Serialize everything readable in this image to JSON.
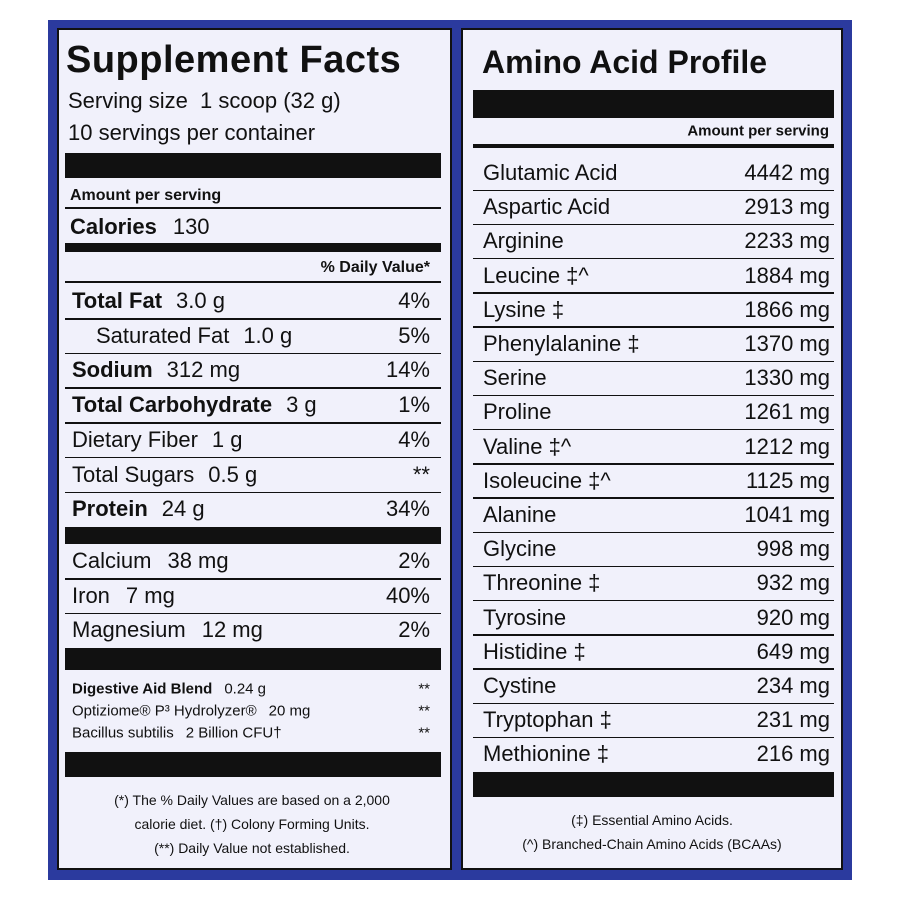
{
  "supplement_facts": {
    "title": "Supplement Facts",
    "serving_size": "Serving size  1 scoop (32 g)",
    "servings": "10 servings per container",
    "amount_per_serving": "Amount per serving",
    "calories": {
      "label": "Calories",
      "value": "130"
    },
    "daily_value_header": "% Daily Value*",
    "nutrients": [
      {
        "name": "Total Fat",
        "amount": "3.0 g",
        "dv": "4%",
        "bold": true
      },
      {
        "name": "Saturated Fat",
        "amount": "1.0 g",
        "dv": "5%",
        "indent": true
      },
      {
        "name": "Sodium",
        "amount": "312 mg",
        "dv": "14%",
        "bold": true
      },
      {
        "name": "Total Carbohydrate",
        "amount": "3 g",
        "dv": "1%",
        "bold": true
      },
      {
        "name": "Dietary Fiber",
        "amount": "1 g",
        "dv": "4%"
      },
      {
        "name": "Total Sugars",
        "amount": "0.5 g",
        "dv": "**"
      },
      {
        "name": "Protein",
        "amount": "24 g",
        "dv": "34%",
        "bold": true
      }
    ],
    "minerals": [
      {
        "name": "Calcium",
        "amount": "38 mg",
        "dv": "2%"
      },
      {
        "name": "Iron",
        "amount": "7 mg",
        "dv": "40%"
      },
      {
        "name": "Magnesium",
        "amount": "12 mg",
        "dv": "2%"
      }
    ],
    "blend": [
      {
        "name": "Digestive Aid Blend",
        "amount": "0.24 g",
        "dv": "**",
        "bold": true
      },
      {
        "name": "Optiziome® P³ Hydrolyzer®",
        "amount": "20 mg",
        "dv": "**"
      },
      {
        "name": "Bacillus subtilis",
        "amount": "2 Billion CFU†",
        "dv": "**"
      }
    ],
    "footnotes": [
      "(*) The % Daily Values are based on a 2,000",
      "calorie diet. (†) Colony Forming Units.",
      "(**) Daily Value not established."
    ]
  },
  "amino_acid_profile": {
    "title": "Amino Acid Profile",
    "amount_per_serving": "Amount per serving",
    "rows": [
      {
        "name": "Glutamic Acid",
        "amount": "4442 mg"
      },
      {
        "name": "Aspartic Acid",
        "amount": "2913 mg"
      },
      {
        "name": "Arginine",
        "amount": "2233 mg"
      },
      {
        "name": "Leucine ‡^",
        "amount": "1884 mg"
      },
      {
        "name": "Lysine ‡",
        "amount": "1866 mg"
      },
      {
        "name": "Phenylalanine ‡",
        "amount": "1370 mg"
      },
      {
        "name": "Serine",
        "amount": "1330 mg"
      },
      {
        "name": "Proline",
        "amount": "1261 mg"
      },
      {
        "name": "Valine ‡^",
        "amount": "1212 mg"
      },
      {
        "name": "Isoleucine ‡^",
        "amount": "1125 mg"
      },
      {
        "name": "Alanine",
        "amount": "1041 mg"
      },
      {
        "name": "Glycine",
        "amount": "998 mg"
      },
      {
        "name": "Threonine ‡",
        "amount": "932 mg"
      },
      {
        "name": "Tyrosine",
        "amount": "920 mg"
      },
      {
        "name": "Histidine ‡",
        "amount": "649 mg"
      },
      {
        "name": "Cystine",
        "amount": "234 mg"
      },
      {
        "name": "Tryptophan ‡",
        "amount": "231 mg"
      },
      {
        "name": "Methionine ‡",
        "amount": "216 mg"
      }
    ],
    "footnotes": [
      "(‡) Essential Amino Acids.",
      "(^) Branched-Chain Amino Acids (BCAAs)"
    ]
  }
}
